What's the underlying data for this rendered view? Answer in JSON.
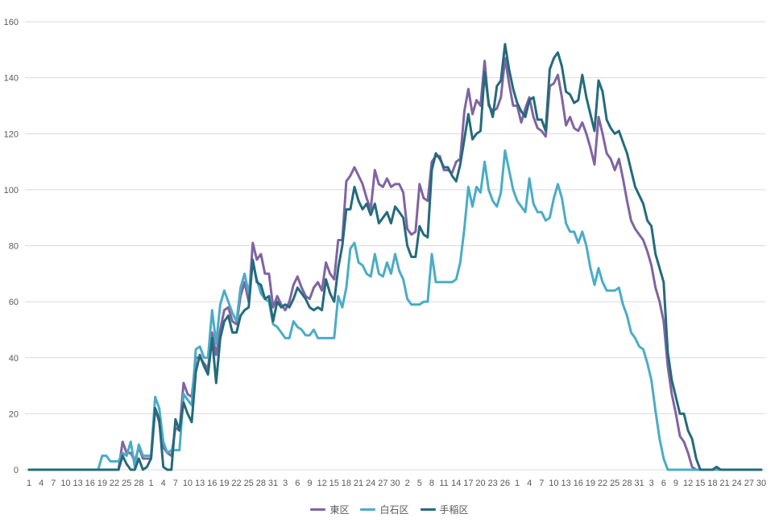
{
  "chart_data": {
    "type": "line",
    "title": "",
    "xlabel": "",
    "ylabel": "",
    "ylim": [
      0,
      160
    ],
    "yticks": [
      0,
      20,
      40,
      60,
      80,
      100,
      120,
      140,
      160
    ],
    "grid": "horizontal",
    "legend": "bottom",
    "x": [
      1,
      2,
      3,
      4,
      5,
      6,
      7,
      8,
      9,
      10,
      11,
      12,
      13,
      14,
      15,
      16,
      17,
      18,
      19,
      20,
      21,
      22,
      23,
      24,
      25,
      26,
      27,
      28,
      29,
      30,
      1,
      2,
      3,
      4,
      5,
      6,
      7,
      8,
      9,
      10,
      11,
      12,
      13,
      14,
      15,
      16,
      17,
      18,
      19,
      20,
      21,
      22,
      23,
      24,
      25,
      26,
      27,
      28,
      29,
      30,
      31,
      1,
      2,
      3,
      4,
      5,
      6,
      7,
      8,
      9,
      10,
      11,
      12,
      13,
      14,
      15,
      16,
      17,
      18,
      19,
      20,
      21,
      22,
      23,
      24,
      25,
      26,
      27,
      28,
      29,
      30,
      31,
      1,
      2,
      3,
      4,
      5,
      6,
      7,
      8,
      9,
      10,
      11,
      12,
      13,
      14,
      15,
      16,
      17,
      18,
      19,
      20,
      21,
      22,
      23,
      24,
      25,
      26,
      27,
      28,
      1,
      2,
      3,
      4,
      5,
      6,
      7,
      8,
      9,
      10,
      11,
      12,
      13,
      14,
      15,
      16,
      17,
      18,
      19,
      20,
      21,
      22,
      23,
      24,
      25,
      26,
      27,
      28,
      29,
      30,
      31,
      1,
      2,
      3,
      4,
      5,
      6,
      7,
      8,
      9,
      10,
      11,
      12,
      13,
      14,
      15,
      16,
      17,
      18,
      19,
      20,
      21,
      22,
      23,
      24,
      25,
      26,
      27,
      28,
      29,
      30
    ],
    "series": [
      {
        "name": "東区",
        "color": "#8064A2",
        "values": [
          0,
          0,
          0,
          0,
          0,
          0,
          0,
          0,
          0,
          0,
          0,
          0,
          0,
          0,
          0,
          0,
          0,
          0,
          0,
          0,
          0,
          0,
          0,
          10,
          6,
          6,
          3,
          8,
          4,
          4,
          4,
          22,
          17,
          8,
          6,
          5,
          15,
          14,
          31,
          27,
          26,
          40,
          40,
          38,
          36,
          49,
          41,
          50,
          57,
          58,
          53,
          52,
          62,
          67,
          60,
          81,
          75,
          77,
          70,
          70,
          58,
          62,
          59,
          57,
          60,
          66,
          69,
          65,
          62,
          61,
          65,
          67,
          64,
          74,
          70,
          68,
          82,
          82,
          103,
          105,
          108,
          105,
          102,
          97,
          93,
          107,
          102,
          101,
          104,
          101,
          102,
          102,
          99,
          86,
          84,
          85,
          102,
          97,
          96,
          110,
          112,
          112,
          107,
          107,
          106,
          110,
          111,
          128,
          136,
          127,
          132,
          130,
          146,
          130,
          128,
          129,
          133,
          147,
          138,
          130,
          130,
          124,
          129,
          133,
          126,
          122,
          121,
          119,
          137,
          138,
          141,
          133,
          123,
          126,
          122,
          121,
          124,
          120,
          115,
          109,
          126,
          120,
          113,
          111,
          107,
          111,
          104,
          96,
          89,
          86,
          84,
          82,
          78,
          73,
          65,
          60,
          53,
          37,
          27,
          20,
          12,
          10,
          6,
          1,
          0,
          0,
          0,
          0,
          0,
          0,
          0,
          0,
          0,
          0,
          0,
          0,
          0,
          0,
          0,
          0,
          0
        ]
      },
      {
        "name": "白石区",
        "color": "#4BACC6",
        "values": [
          0,
          0,
          0,
          0,
          0,
          0,
          0,
          0,
          0,
          0,
          0,
          0,
          0,
          0,
          0,
          0,
          0,
          0,
          5,
          5,
          3,
          3,
          3,
          6,
          5,
          10,
          1,
          9,
          5,
          5,
          5,
          26,
          22,
          10,
          6,
          7,
          7,
          7,
          27,
          25,
          23,
          43,
          44,
          40,
          40,
          57,
          45,
          59,
          64,
          60,
          56,
          53,
          65,
          70,
          63,
          74,
          68,
          63,
          61,
          60,
          52,
          51,
          49,
          47,
          47,
          53,
          51,
          50,
          48,
          48,
          50,
          47,
          47,
          47,
          47,
          47,
          62,
          58,
          65,
          79,
          81,
          74,
          73,
          70,
          69,
          77,
          70,
          69,
          74,
          70,
          77,
          71,
          68,
          61,
          59,
          59,
          59,
          60,
          60,
          77,
          67,
          67,
          67,
          67,
          67,
          68,
          74,
          86,
          101,
          94,
          101,
          99,
          110,
          100,
          96,
          94,
          99,
          114,
          107,
          100,
          96,
          94,
          92,
          104,
          95,
          92,
          92,
          89,
          90,
          97,
          102,
          97,
          88,
          85,
          85,
          81,
          85,
          80,
          72,
          66,
          72,
          67,
          64,
          64,
          64,
          65,
          59,
          55,
          49,
          47,
          44,
          43,
          38,
          32,
          21,
          11,
          4,
          0,
          0,
          0,
          0,
          0,
          0,
          0,
          0,
          0,
          0,
          0,
          0,
          0,
          0,
          0,
          0,
          0,
          0,
          0,
          0,
          0,
          0,
          0,
          0
        ]
      },
      {
        "name": "手稲区",
        "color": "#246B7C",
        "values": [
          0,
          0,
          0,
          0,
          0,
          0,
          0,
          0,
          0,
          0,
          0,
          0,
          0,
          0,
          0,
          0,
          0,
          0,
          0,
          0,
          0,
          0,
          0,
          5,
          2,
          0,
          0,
          4,
          0,
          1,
          4,
          22,
          18,
          1,
          0,
          0,
          18,
          14,
          24,
          20,
          17,
          35,
          41,
          37,
          34,
          47,
          31,
          47,
          53,
          55,
          49,
          49,
          55,
          57,
          58,
          75,
          67,
          66,
          61,
          62,
          53,
          60,
          58,
          59,
          58,
          61,
          65,
          63,
          61,
          58,
          57,
          58,
          57,
          68,
          63,
          60,
          72,
          80,
          93,
          93,
          101,
          96,
          93,
          95,
          91,
          95,
          88,
          90,
          92,
          88,
          94,
          92,
          90,
          80,
          76,
          76,
          87,
          84,
          83,
          107,
          113,
          111,
          108,
          108,
          105,
          103,
          109,
          118,
          127,
          118,
          120,
          121,
          142,
          131,
          126,
          137,
          139,
          152,
          143,
          136,
          131,
          128,
          126,
          132,
          133,
          125,
          125,
          121,
          143,
          147,
          149,
          144,
          135,
          134,
          131,
          132,
          141,
          133,
          127,
          121,
          139,
          135,
          125,
          122,
          120,
          121,
          117,
          113,
          107,
          101,
          98,
          95,
          89,
          87,
          77,
          72,
          67,
          42,
          32,
          26,
          20,
          20,
          14,
          11,
          4,
          0,
          0,
          0,
          0,
          1,
          0,
          0,
          0,
          0,
          0,
          0,
          0,
          0,
          0,
          0,
          0
        ]
      }
    ]
  }
}
